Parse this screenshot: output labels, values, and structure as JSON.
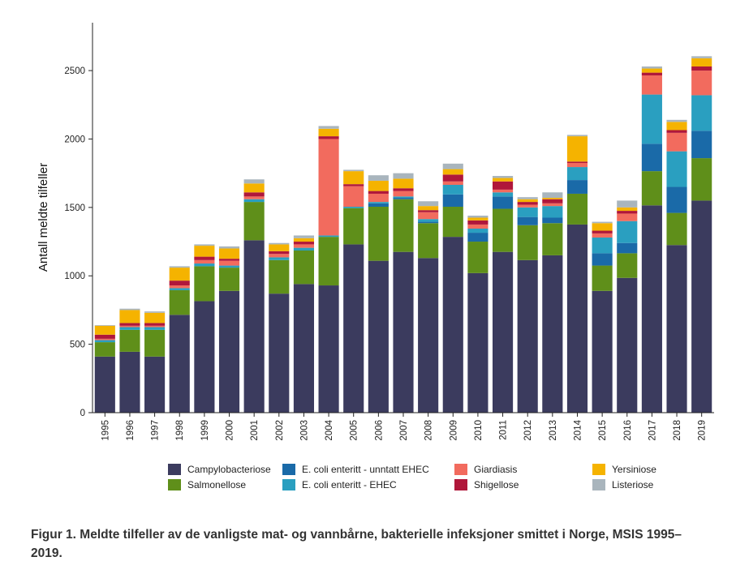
{
  "chart_data": {
    "type": "bar",
    "stacked": true,
    "ylabel": "Antall meldte tilfeller",
    "xlabel": "",
    "ylim": [
      0,
      2850
    ],
    "yticks": [
      0,
      500,
      1000,
      1500,
      2000,
      2500
    ],
    "categories": [
      "1995",
      "1996",
      "1997",
      "1998",
      "1999",
      "2000",
      "2001",
      "2002",
      "2003",
      "2004",
      "2005",
      "2006",
      "2007",
      "2008",
      "2009",
      "2010",
      "2011",
      "2012",
      "2013",
      "2014",
      "2015",
      "2016",
      "2017",
      "2018",
      "2019"
    ],
    "series": [
      {
        "name": "Campylobacteriose",
        "color": "#3b3b5e",
        "values": [
          410,
          445,
          410,
          715,
          815,
          890,
          1260,
          870,
          940,
          930,
          1230,
          1110,
          1175,
          1130,
          1285,
          1020,
          1175,
          1115,
          1150,
          1375,
          890,
          985,
          1515,
          1225,
          1550
        ]
      },
      {
        "name": "Salmonellose",
        "color": "#5f8f1a",
        "values": [
          105,
          160,
          195,
          180,
          255,
          170,
          280,
          245,
          245,
          355,
          265,
          395,
          385,
          255,
          220,
          230,
          315,
          255,
          235,
          225,
          185,
          180,
          250,
          235,
          310
        ]
      },
      {
        "name": "E. coli enteritt - unntatt EHEC",
        "color": "#1a6aa8",
        "values": [
          0,
          0,
          0,
          0,
          0,
          0,
          0,
          0,
          0,
          0,
          0,
          25,
          10,
          10,
          90,
          65,
          90,
          60,
          40,
          100,
          90,
          75,
          200,
          190,
          200
        ]
      },
      {
        "name": "E. coli enteritt - EHEC",
        "color": "#2a9fc0",
        "values": [
          15,
          20,
          20,
          15,
          20,
          15,
          20,
          20,
          20,
          10,
          10,
          10,
          10,
          20,
          70,
          30,
          30,
          70,
          85,
          95,
          115,
          160,
          360,
          260,
          260
        ]
      },
      {
        "name": "Giardiasis",
        "color": "#f26b5e",
        "values": [
          10,
          10,
          10,
          20,
          25,
          35,
          20,
          25,
          25,
          705,
          150,
          60,
          40,
          50,
          25,
          30,
          20,
          20,
          20,
          30,
          30,
          55,
          140,
          135,
          180
        ]
      },
      {
        "name": "Shigellose",
        "color": "#b0173a",
        "values": [
          30,
          20,
          20,
          35,
          25,
          15,
          30,
          20,
          20,
          20,
          15,
          20,
          20,
          15,
          50,
          30,
          60,
          20,
          30,
          10,
          20,
          20,
          20,
          20,
          30
        ]
      },
      {
        "name": "Yersiniose",
        "color": "#f5b300",
        "values": [
          65,
          95,
          75,
          95,
          80,
          75,
          65,
          50,
          25,
          55,
          95,
          75,
          70,
          30,
          40,
          20,
          25,
          20,
          10,
          185,
          55,
          25,
          30,
          60,
          60
        ]
      },
      {
        "name": "Listeriose",
        "color": "#a9b5bd",
        "values": [
          5,
          10,
          10,
          10,
          10,
          15,
          30,
          10,
          20,
          20,
          10,
          40,
          40,
          35,
          40,
          15,
          15,
          15,
          40,
          10,
          10,
          50,
          15,
          15,
          15
        ]
      }
    ],
    "legend_position": "bottom"
  },
  "caption": "Figur 1. Meldte tilfeller av de vanligste mat- og vannbårne, bakterielle infeksjoner smittet i Norge, MSIS 1995–2019."
}
